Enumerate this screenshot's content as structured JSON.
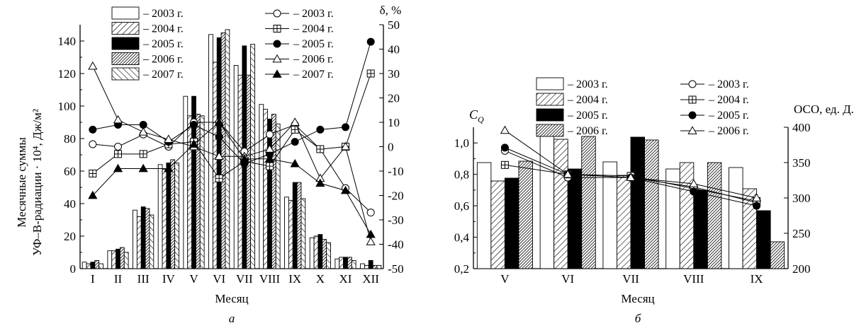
{
  "charts": [
    {
      "panel_label": "а",
      "type": "bar+line",
      "xlabel": "Месяц",
      "ylabel_left_line1": "Месячные суммы",
      "ylabel_left_line2": "УФ–B-радиации · 10⁴, Дж/м²",
      "ylabel_right": "δ, %",
      "ylim_left": [
        0,
        150
      ],
      "ylim_right": [
        -50,
        50
      ],
      "yticks_left": [
        0,
        20,
        40,
        60,
        80,
        100,
        120,
        140
      ],
      "yticks_right": [
        -50,
        -40,
        -30,
        -20,
        -10,
        0,
        10,
        20,
        30,
        40,
        50
      ],
      "categories": [
        "I",
        "II",
        "III",
        "IV",
        "V",
        "VI",
        "VII",
        "VIII",
        "IX",
        "X",
        "XI",
        "XII"
      ],
      "bar_series": [
        {
          "name": "– 2003 г.",
          "pattern": "white",
          "values": [
            4,
            11,
            36,
            64,
            106,
            144,
            125,
            101,
            44,
            19,
            6,
            3
          ]
        },
        {
          "name": "– 2004 г.",
          "pattern": "hatchR",
          "values": [
            3,
            11,
            32,
            61,
            94,
            127,
            119,
            98,
            42,
            20,
            7,
            2
          ]
        },
        {
          "name": "– 2005 г.",
          "pattern": "black",
          "values": [
            4,
            12,
            38,
            65,
            106,
            142,
            137,
            92,
            53,
            21,
            7,
            5
          ]
        },
        {
          "name": "– 2006 г.",
          "pattern": "hatchDense",
          "values": [
            5,
            13,
            37,
            67,
            95,
            145,
            119,
            95,
            53,
            18,
            7,
            2
          ]
        },
        {
          "name": "– 2007 г.",
          "pattern": "hatchL",
          "values": [
            3,
            10,
            33,
            65,
            94,
            147,
            138,
            89,
            43,
            16,
            5,
            2
          ]
        }
      ],
      "line_series": [
        {
          "name": "– 2003 г.",
          "marker": "circle-open",
          "values": [
            1,
            0,
            5,
            0,
            10,
            10,
            -2,
            5,
            9,
            -1,
            -17,
            -27
          ]
        },
        {
          "name": "– 2004 г.",
          "marker": "square-plus",
          "values": [
            -11,
            -3,
            -3,
            1,
            2,
            -13,
            -6,
            -8,
            7,
            -1,
            0,
            30
          ]
        },
        {
          "name": "– 2005 г.",
          "marker": "circle-filled",
          "values": [
            7,
            9,
            9,
            2,
            9,
            4,
            -7,
            -3,
            2,
            7,
            8,
            43
          ]
        },
        {
          "name": "– 2006 г.",
          "marker": "triangle-open",
          "values": [
            33,
            11,
            6,
            3,
            0,
            -4,
            -4,
            -1,
            10,
            -13,
            0,
            -39
          ]
        },
        {
          "name": "– 2007 г.",
          "marker": "triangle-filled",
          "values": [
            -20,
            -9,
            -9,
            -9,
            1,
            10,
            -5,
            -5,
            -7,
            -15,
            -18,
            -36
          ]
        }
      ]
    },
    {
      "panel_label": "б",
      "type": "bar+line",
      "xlabel": "Месяц",
      "ylabel_left": "",
      "line_label": "C",
      "line_label_sub": "Q",
      "ylabel_right": "ОСО, ед. Д.",
      "ylim_left": [
        0.2,
        1.1
      ],
      "ylim_right": [
        200,
        400
      ],
      "yticks_left": [
        "0,2",
        "0,4",
        "0,6",
        "0,8",
        "1,0"
      ],
      "yticks_left_values": [
        0.2,
        0.4,
        0.6,
        0.8,
        1.0
      ],
      "yticks_right": [
        200,
        250,
        300,
        350,
        400
      ],
      "categories": [
        "V",
        "VI",
        "VII",
        "VIII",
        "IX"
      ],
      "bar_series": [
        {
          "name": "– 2003 г.",
          "pattern": "white",
          "values": [
            350,
            392,
            351,
            341,
            343
          ]
        },
        {
          "name": "– 2004 г.",
          "pattern": "hatchR",
          "values": [
            324,
            383,
            332,
            350,
            313
          ]
        },
        {
          "name": "– 2005 г.",
          "pattern": "black",
          "values": [
            328,
            341,
            386,
            311,
            282
          ]
        },
        {
          "name": "– 2006 г.",
          "pattern": "hatchDense",
          "values": [
            352,
            387,
            382,
            350,
            238
          ]
        }
      ],
      "line_series": [
        {
          "name": "– 2003 г.",
          "marker": "circle-open",
          "values": [
            0.95,
            0.78,
            0.78,
            0.72,
            0.62
          ]
        },
        {
          "name": "– 2004 г.",
          "marker": "square-plus",
          "values": [
            0.86,
            0.8,
            0.79,
            0.71,
            0.63
          ]
        },
        {
          "name": "– 2005 г.",
          "marker": "circle-filled",
          "values": [
            0.97,
            0.8,
            0.78,
            0.69,
            0.6
          ]
        },
        {
          "name": "– 2006 г.",
          "marker": "triangle-open",
          "values": [
            1.08,
            0.8,
            0.78,
            0.74,
            0.65
          ]
        }
      ]
    }
  ]
}
